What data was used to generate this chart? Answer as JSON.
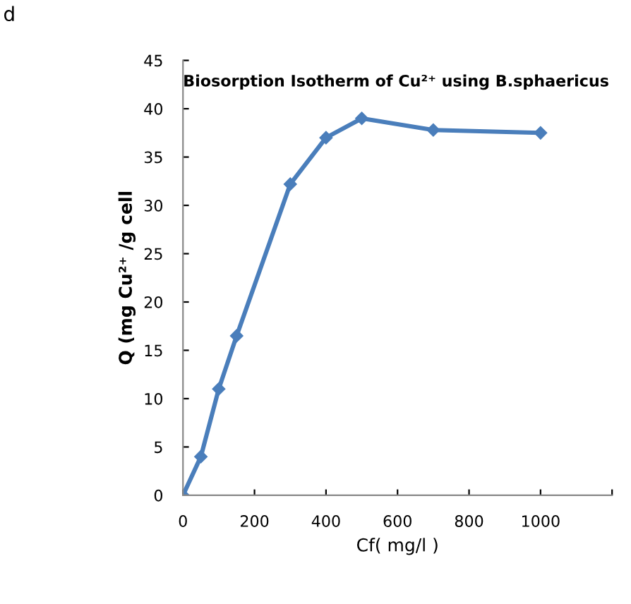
{
  "chart_data": {
    "type": "line",
    "title": "Biosorption Isotherm of Cu²⁺ using B.sphaericus",
    "xlabel": "Cf( mg/l )",
    "ylabel": "Q (mg Cu²⁺ /g cell",
    "annotations": [
      "d"
    ],
    "x": [
      0,
      50,
      100,
      150,
      300,
      400,
      500,
      700,
      1000
    ],
    "series": [
      {
        "color": "#4a7ebb",
        "values": [
          0,
          4,
          11,
          16.5,
          32.2,
          37,
          39,
          37.8,
          37.5
        ]
      }
    ],
    "xlim": [
      0,
      1200
    ],
    "xticks": [
      0,
      200,
      400,
      600,
      800,
      1000,
      {
        "value": 1200,
        "label": null
      }
    ],
    "ylim": [
      0,
      45
    ],
    "yticks": [
      0,
      5,
      10,
      15,
      20,
      25,
      30,
      35,
      40,
      45
    ],
    "marker": "diamond",
    "line_style": "solid",
    "grid": false,
    "legend": false
  }
}
